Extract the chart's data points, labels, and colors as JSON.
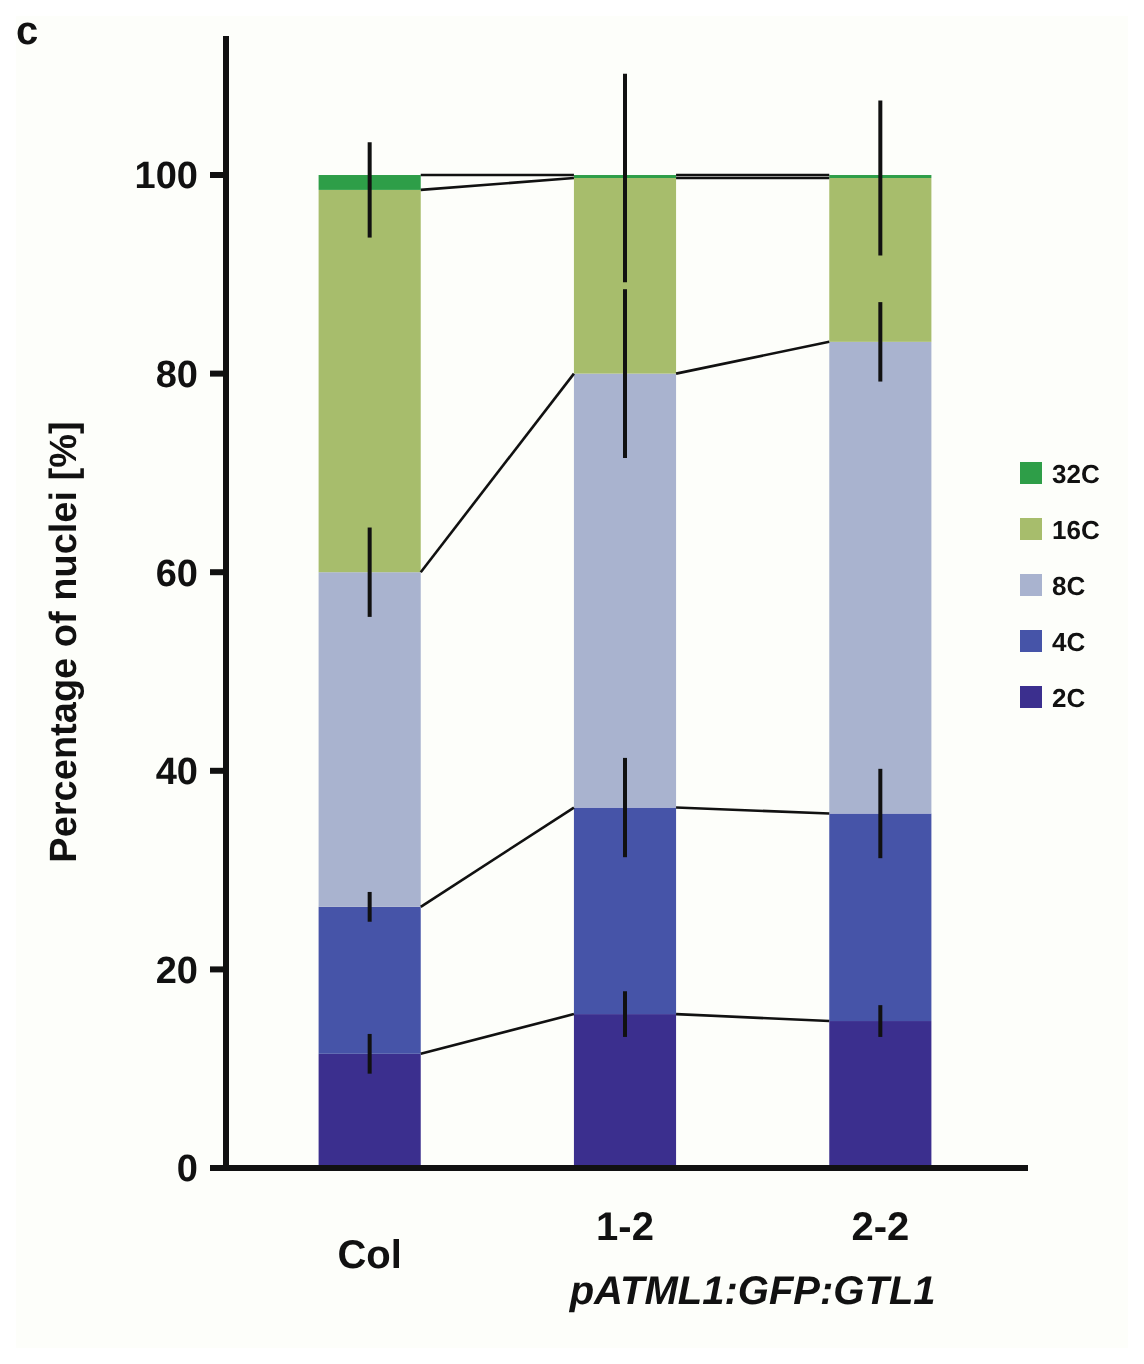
{
  "chart_data": {
    "type": "bar",
    "stacked": true,
    "ylabel": "Percentage of nuclei [%]",
    "categories": [
      "Col",
      "1-2",
      "2-2"
    ],
    "series": [
      {
        "name": "2C",
        "color": "#3b2f8e",
        "values": [
          11.5,
          15.5,
          14.8
        ],
        "errors": [
          2,
          2.3,
          1.6
        ]
      },
      {
        "name": "4C",
        "color": "#4654a8",
        "values": [
          14.8,
          20.8,
          20.9
        ],
        "errors": [
          1.5,
          5,
          4.5
        ]
      },
      {
        "name": "8C",
        "color": "#a9b3cf",
        "values": [
          33.7,
          43.7,
          47.5
        ],
        "errors": [
          4.5,
          8.5,
          4
        ]
      },
      {
        "name": "16C",
        "color": "#a7bd6c",
        "values": [
          38.5,
          19.7,
          16.5
        ],
        "errors": [
          4.8,
          10.5,
          7.8
        ]
      },
      {
        "name": "32C",
        "color": "#2e9e48",
        "values": [
          1.5,
          0.3,
          0.3
        ],
        "errors": [
          null,
          null,
          null
        ]
      }
    ],
    "ylim": [
      0,
      114
    ],
    "yticks": [
      0,
      20,
      40,
      60,
      80,
      100
    ],
    "grid": false,
    "legend": "right",
    "annotations": [
      "pATML1:GFP:GTL1",
      "c"
    ]
  }
}
